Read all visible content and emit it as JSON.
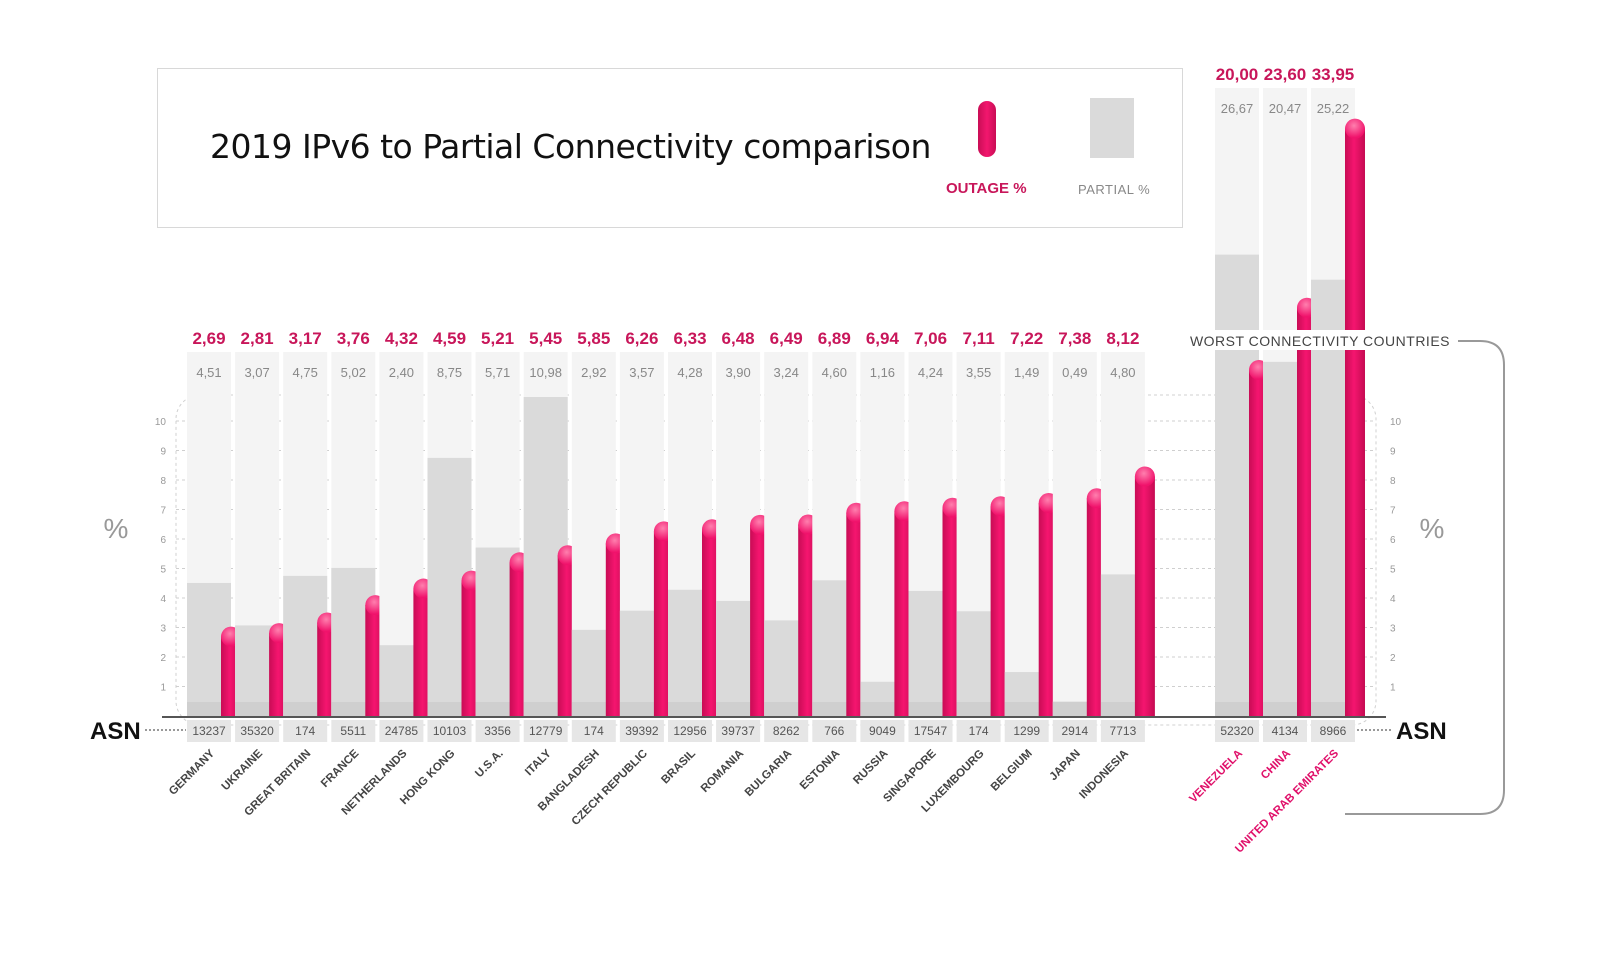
{
  "title": "2019 IPv6 to Partial Connectivity comparison",
  "legend": {
    "outage": "OUTAGE %",
    "partial": "PARTIAL %"
  },
  "colors": {
    "outage": "#f0126b",
    "outage_label": "#c8165a",
    "partial": "#dadada",
    "column_bg": "#f4f4f4",
    "worst_label": "#e0106a"
  },
  "chart_data": {
    "type": "bar",
    "title": "2019 IPv6 to Partial Connectivity comparison",
    "ylabel": "%",
    "ylim": [
      0,
      10
    ],
    "yticks": [
      "1",
      "2",
      "3",
      "4",
      "5",
      "6",
      "7",
      "8",
      "9",
      "10"
    ],
    "axis_label": "ASN",
    "worst_group_label": "WORST CONNECTIVITY COUNTRIES",
    "countries": [
      {
        "name": "GERMANY",
        "asn": "13237",
        "outage": 2.69,
        "partial": 4.51,
        "outage_label": "2,69",
        "partial_label": "4,51"
      },
      {
        "name": "UKRAINE",
        "asn": "35320",
        "outage": 2.81,
        "partial": 3.07,
        "outage_label": "2,81",
        "partial_label": "3,07"
      },
      {
        "name": "GREAT BRITAIN",
        "asn": "174",
        "outage": 3.17,
        "partial": 4.75,
        "outage_label": "3,17",
        "partial_label": "4,75"
      },
      {
        "name": "FRANCE",
        "asn": "5511",
        "outage": 3.76,
        "partial": 5.02,
        "outage_label": "3,76",
        "partial_label": "5,02"
      },
      {
        "name": "NETHERLANDS",
        "asn": "24785",
        "outage": 4.32,
        "partial": 2.4,
        "outage_label": "4,32",
        "partial_label": "2,40"
      },
      {
        "name": "HONG KONG",
        "asn": "10103",
        "outage": 4.59,
        "partial": 8.75,
        "outage_label": "4,59",
        "partial_label": "8,75"
      },
      {
        "name": "U.S.A.",
        "asn": "3356",
        "outage": 5.21,
        "partial": 5.71,
        "outage_label": "5,21",
        "partial_label": "5,71"
      },
      {
        "name": "ITALY",
        "asn": "12779",
        "outage": 5.45,
        "partial": 10.98,
        "outage_label": "5,45",
        "partial_label": "10,98"
      },
      {
        "name": "BANGLADESH",
        "asn": "174",
        "outage": 5.85,
        "partial": 2.92,
        "outage_label": "5,85",
        "partial_label": "2,92"
      },
      {
        "name": "CZECH REPUBLIC",
        "asn": "39392",
        "outage": 6.26,
        "partial": 3.57,
        "outage_label": "6,26",
        "partial_label": "3,57"
      },
      {
        "name": "BRASIL",
        "asn": "12956",
        "outage": 6.33,
        "partial": 4.28,
        "outage_label": "6,33",
        "partial_label": "4,28"
      },
      {
        "name": "ROMANIA",
        "asn": "39737",
        "outage": 6.48,
        "partial": 3.9,
        "outage_label": "6,48",
        "partial_label": "3,90"
      },
      {
        "name": "BULGARIA",
        "asn": "8262",
        "outage": 6.49,
        "partial": 3.24,
        "outage_label": "6,49",
        "partial_label": "3,24"
      },
      {
        "name": "ESTONIA",
        "asn": "766",
        "outage": 6.89,
        "partial": 4.6,
        "outage_label": "6,89",
        "partial_label": "4,60"
      },
      {
        "name": "RUSSIA",
        "asn": "9049",
        "outage": 6.94,
        "partial": 1.16,
        "outage_label": "6,94",
        "partial_label": "1,16"
      },
      {
        "name": "SINGAPORE",
        "asn": "17547",
        "outage": 7.06,
        "partial": 4.24,
        "outage_label": "7,06",
        "partial_label": "4,24"
      },
      {
        "name": "LUXEMBOURG",
        "asn": "174",
        "outage": 7.11,
        "partial": 3.55,
        "outage_label": "7,11",
        "partial_label": "3,55"
      },
      {
        "name": "BELGIUM",
        "asn": "1299",
        "outage": 7.22,
        "partial": 1.49,
        "outage_label": "7,22",
        "partial_label": "1,49"
      },
      {
        "name": "JAPAN",
        "asn": "2914",
        "outage": 7.38,
        "partial": 0.49,
        "outage_label": "7,38",
        "partial_label": "0,49"
      },
      {
        "name": "INDONESIA",
        "asn": "7713",
        "outage": 8.12,
        "partial": 4.8,
        "outage_label": "8,12",
        "partial_label": "4,80"
      }
    ],
    "worst": [
      {
        "name": "VENEZUELA",
        "asn": "52320",
        "outage": 20.0,
        "partial": 26.67,
        "outage_label": "20,00",
        "partial_label": "26,67"
      },
      {
        "name": "CHINA",
        "asn": "4134",
        "outage": 23.6,
        "partial": 20.47,
        "outage_label": "23,60",
        "partial_label": "20,47"
      },
      {
        "name": "UNITED ARAB EMIRATES",
        "asn": "8966",
        "outage": 33.95,
        "partial": 25.22,
        "outage_label": "33,95",
        "partial_label": "25,22"
      }
    ]
  }
}
